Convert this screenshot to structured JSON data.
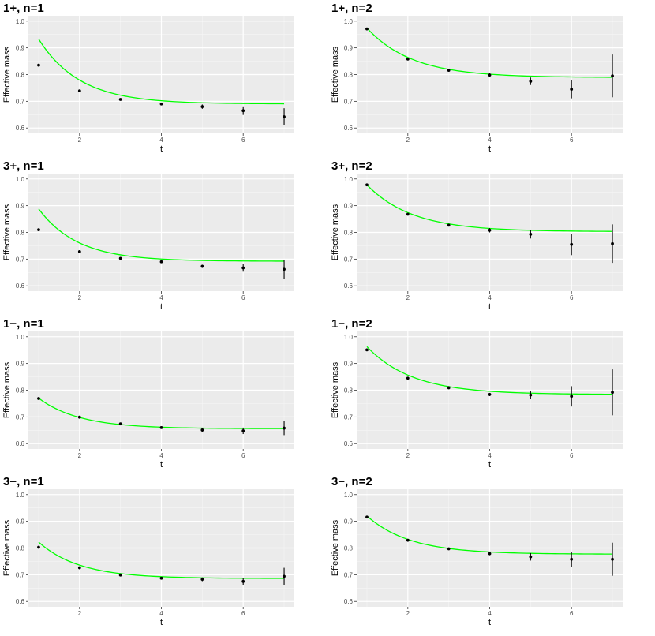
{
  "chart_data": [
    {
      "type": "scatter",
      "title": "1+, n=1",
      "xlabel": "t",
      "ylabel": "Effective mass",
      "xlim": [
        0.75,
        7.25
      ],
      "ylim": [
        0.58,
        1.02
      ],
      "x_ticks": [
        2,
        4,
        6
      ],
      "y_ticks": [
        0.6,
        0.7,
        0.8,
        0.9,
        1.0
      ],
      "y_tick_labels": [
        "0.6",
        "0.7",
        "0.8",
        "0.9",
        "1.0"
      ],
      "grid": true,
      "points": [
        {
          "x": 1,
          "y": 0.835,
          "err": 0.002
        },
        {
          "x": 2,
          "y": 0.739,
          "err": 0.002
        },
        {
          "x": 3,
          "y": 0.707,
          "err": 0.003
        },
        {
          "x": 4,
          "y": 0.69,
          "err": 0.004
        },
        {
          "x": 5,
          "y": 0.68,
          "err": 0.008
        },
        {
          "x": 6,
          "y": 0.665,
          "err": 0.016
        },
        {
          "x": 7,
          "y": 0.642,
          "err": 0.032
        }
      ],
      "fit": {
        "form": "a + b*exp(-c*t)",
        "a": 0.69,
        "b": 0.66,
        "c": 1.0,
        "color": "#00ff00"
      }
    },
    {
      "type": "scatter",
      "title": "1+, n=2",
      "xlabel": "t",
      "ylabel": "Effective mass",
      "xlim": [
        0.75,
        7.25
      ],
      "ylim": [
        0.58,
        1.02
      ],
      "x_ticks": [
        2,
        4,
        6
      ],
      "y_ticks": [
        0.6,
        0.7,
        0.8,
        0.9,
        1.0
      ],
      "y_tick_labels": [
        "0.6",
        "0.7",
        "0.8",
        "0.9",
        "1.0"
      ],
      "grid": true,
      "points": [
        {
          "x": 1,
          "y": 0.971,
          "err": 0.002
        },
        {
          "x": 2,
          "y": 0.858,
          "err": 0.003
        },
        {
          "x": 3,
          "y": 0.816,
          "err": 0.004
        },
        {
          "x": 4,
          "y": 0.798,
          "err": 0.008
        },
        {
          "x": 5,
          "y": 0.775,
          "err": 0.014
        },
        {
          "x": 6,
          "y": 0.745,
          "err": 0.034
        },
        {
          "x": 7,
          "y": 0.795,
          "err": 0.08
        }
      ],
      "fit": {
        "form": "a + b*exp(-c*t)",
        "a": 0.789,
        "b": 0.455,
        "c": 0.9,
        "color": "#00ff00"
      }
    },
    {
      "type": "scatter",
      "title": "3+, n=1",
      "xlabel": "t",
      "ylabel": "Effective mass",
      "xlim": [
        0.75,
        7.25
      ],
      "ylim": [
        0.58,
        1.02
      ],
      "x_ticks": [
        2,
        4,
        6
      ],
      "y_ticks": [
        0.6,
        0.7,
        0.8,
        0.9,
        1.0
      ],
      "y_tick_labels": [
        "0.6",
        "0.7",
        "0.8",
        "0.9",
        "1.0"
      ],
      "grid": true,
      "points": [
        {
          "x": 1,
          "y": 0.81,
          "err": 0.002
        },
        {
          "x": 2,
          "y": 0.728,
          "err": 0.002
        },
        {
          "x": 3,
          "y": 0.703,
          "err": 0.003
        },
        {
          "x": 4,
          "y": 0.69,
          "err": 0.004
        },
        {
          "x": 5,
          "y": 0.673,
          "err": 0.006
        },
        {
          "x": 6,
          "y": 0.667,
          "err": 0.014
        },
        {
          "x": 7,
          "y": 0.662,
          "err": 0.036
        }
      ],
      "fit": {
        "form": "a + b*exp(-c*t)",
        "a": 0.692,
        "b": 0.56,
        "c": 1.05,
        "color": "#00ff00"
      }
    },
    {
      "type": "scatter",
      "title": "3+, n=2",
      "xlabel": "t",
      "ylabel": "Effective mass",
      "xlim": [
        0.75,
        7.25
      ],
      "ylim": [
        0.58,
        1.02
      ],
      "x_ticks": [
        2,
        4,
        6
      ],
      "y_ticks": [
        0.6,
        0.7,
        0.8,
        0.9,
        1.0
      ],
      "y_tick_labels": [
        "0.6",
        "0.7",
        "0.8",
        "0.9",
        "1.0"
      ],
      "grid": true,
      "points": [
        {
          "x": 1,
          "y": 0.978,
          "err": 0.002
        },
        {
          "x": 2,
          "y": 0.868,
          "err": 0.003
        },
        {
          "x": 3,
          "y": 0.827,
          "err": 0.004
        },
        {
          "x": 4,
          "y": 0.808,
          "err": 0.008
        },
        {
          "x": 5,
          "y": 0.793,
          "err": 0.016
        },
        {
          "x": 6,
          "y": 0.755,
          "err": 0.04
        },
        {
          "x": 7,
          "y": 0.758,
          "err": 0.072
        }
      ],
      "fit": {
        "form": "a + b*exp(-c*t)",
        "a": 0.803,
        "b": 0.43,
        "c": 0.9,
        "color": "#00ff00"
      }
    },
    {
      "type": "scatter",
      "title": "1−, n=1",
      "xlabel": "t",
      "ylabel": "Effective mass",
      "xlim": [
        0.75,
        7.25
      ],
      "ylim": [
        0.58,
        1.02
      ],
      "x_ticks": [
        2,
        4,
        6
      ],
      "y_ticks": [
        0.6,
        0.7,
        0.8,
        0.9,
        1.0
      ],
      "y_tick_labels": [
        "0.6",
        "0.7",
        "0.8",
        "0.9",
        "1.0"
      ],
      "grid": true,
      "points": [
        {
          "x": 1,
          "y": 0.769,
          "err": 0.002
        },
        {
          "x": 2,
          "y": 0.699,
          "err": 0.002
        },
        {
          "x": 3,
          "y": 0.674,
          "err": 0.003
        },
        {
          "x": 4,
          "y": 0.66,
          "err": 0.003
        },
        {
          "x": 5,
          "y": 0.651,
          "err": 0.006
        },
        {
          "x": 6,
          "y": 0.648,
          "err": 0.012
        },
        {
          "x": 7,
          "y": 0.658,
          "err": 0.026
        }
      ],
      "fit": {
        "form": "a + b*exp(-c*t)",
        "a": 0.656,
        "b": 0.31,
        "c": 1.0,
        "color": "#00ff00"
      }
    },
    {
      "type": "scatter",
      "title": "1−, n=2",
      "xlabel": "t",
      "ylabel": "Effective mass",
      "xlim": [
        0.75,
        7.25
      ],
      "ylim": [
        0.58,
        1.02
      ],
      "x_ticks": [
        2,
        4,
        6
      ],
      "y_ticks": [
        0.6,
        0.7,
        0.8,
        0.9,
        1.0
      ],
      "y_tick_labels": [
        "0.6",
        "0.7",
        "0.8",
        "0.9",
        "1.0"
      ],
      "grid": true,
      "points": [
        {
          "x": 1,
          "y": 0.951,
          "err": 0.002
        },
        {
          "x": 2,
          "y": 0.845,
          "err": 0.003
        },
        {
          "x": 3,
          "y": 0.809,
          "err": 0.004
        },
        {
          "x": 4,
          "y": 0.784,
          "err": 0.006
        },
        {
          "x": 5,
          "y": 0.782,
          "err": 0.016
        },
        {
          "x": 6,
          "y": 0.777,
          "err": 0.038
        },
        {
          "x": 7,
          "y": 0.792,
          "err": 0.086
        }
      ],
      "fit": {
        "form": "a + b*exp(-c*t)",
        "a": 0.784,
        "b": 0.44,
        "c": 0.9,
        "color": "#00ff00"
      }
    },
    {
      "type": "scatter",
      "title": "3−, n=1",
      "xlabel": "t",
      "ylabel": "Effective mass",
      "xlim": [
        0.75,
        7.25
      ],
      "ylim": [
        0.58,
        1.02
      ],
      "x_ticks": [
        2,
        4,
        6
      ],
      "y_ticks": [
        0.6,
        0.7,
        0.8,
        0.9,
        1.0
      ],
      "y_tick_labels": [
        "0.6",
        "0.7",
        "0.8",
        "0.9",
        "1.0"
      ],
      "grid": true,
      "points": [
        {
          "x": 1,
          "y": 0.803,
          "err": 0.002
        },
        {
          "x": 2,
          "y": 0.726,
          "err": 0.002
        },
        {
          "x": 3,
          "y": 0.699,
          "err": 0.003
        },
        {
          "x": 4,
          "y": 0.687,
          "err": 0.004
        },
        {
          "x": 5,
          "y": 0.683,
          "err": 0.007
        },
        {
          "x": 6,
          "y": 0.675,
          "err": 0.013
        },
        {
          "x": 7,
          "y": 0.694,
          "err": 0.032
        }
      ],
      "fit": {
        "form": "a + b*exp(-c*t)",
        "a": 0.686,
        "b": 0.37,
        "c": 1.0,
        "color": "#00ff00"
      }
    },
    {
      "type": "scatter",
      "title": "3−, n=2",
      "xlabel": "t",
      "ylabel": "Effective mass",
      "xlim": [
        0.75,
        7.25
      ],
      "ylim": [
        0.58,
        1.02
      ],
      "x_ticks": [
        2,
        4,
        6
      ],
      "y_ticks": [
        0.6,
        0.7,
        0.8,
        0.9,
        1.0
      ],
      "y_tick_labels": [
        "0.6",
        "0.7",
        "0.8",
        "0.9",
        "1.0"
      ],
      "grid": true,
      "points": [
        {
          "x": 1,
          "y": 0.916,
          "err": 0.002
        },
        {
          "x": 2,
          "y": 0.829,
          "err": 0.003
        },
        {
          "x": 3,
          "y": 0.797,
          "err": 0.003
        },
        {
          "x": 4,
          "y": 0.779,
          "err": 0.006
        },
        {
          "x": 5,
          "y": 0.767,
          "err": 0.014
        },
        {
          "x": 6,
          "y": 0.758,
          "err": 0.028
        },
        {
          "x": 7,
          "y": 0.758,
          "err": 0.062
        }
      ],
      "fit": {
        "form": "a + b*exp(-c*t)",
        "a": 0.777,
        "b": 0.37,
        "c": 0.95,
        "color": "#00ff00"
      }
    }
  ]
}
